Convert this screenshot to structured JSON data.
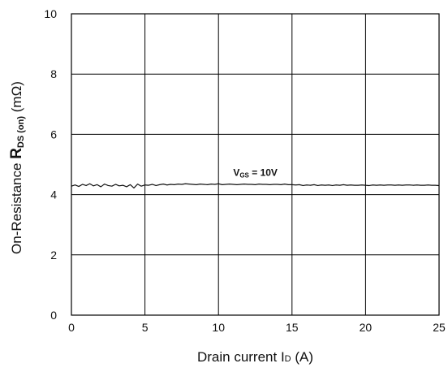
{
  "chart_data": {
    "type": "line",
    "xlabel": {
      "prefix": "Drain current I",
      "sub": "D",
      "suffix": " (A)"
    },
    "ylabel": {
      "prefix": "On-Resistance ",
      "bold": "R",
      "sub": "DS (on)",
      "suffix": " (mΩ)"
    },
    "xlim": [
      0,
      25
    ],
    "ylim": [
      0,
      10
    ],
    "x_ticks": [
      0,
      5,
      10,
      15,
      20,
      25
    ],
    "y_ticks": [
      0,
      2,
      4,
      6,
      8,
      10
    ],
    "grid": true,
    "series_label": {
      "main": "V",
      "sub": "GS",
      "rest": " = 10V"
    },
    "series_label_position": {
      "x": 11.0,
      "y": 4.62
    },
    "series": [
      {
        "x": [
          0,
          0.25,
          0.5,
          0.75,
          1,
          1.25,
          1.5,
          1.75,
          2,
          2.25,
          2.5,
          2.75,
          3,
          3.25,
          3.5,
          3.75,
          4,
          4.25,
          4.5,
          4.75,
          5,
          5.25,
          5.5,
          5.75,
          6,
          6.25,
          6.5,
          6.75,
          7,
          7.25,
          7.5,
          7.75,
          8,
          8.25,
          8.5,
          8.75,
          9,
          9.25,
          9.5,
          9.75,
          10,
          10.25,
          10.5,
          10.75,
          11,
          11.25,
          11.5,
          11.75,
          12,
          12.25,
          12.5,
          12.75,
          13,
          13.25,
          13.5,
          13.75,
          14,
          14.25,
          14.5,
          14.75,
          15,
          15.25,
          15.5,
          15.75,
          16,
          16.25,
          16.5,
          16.75,
          17,
          17.25,
          17.5,
          17.75,
          18,
          18.25,
          18.5,
          18.75,
          19,
          19.25,
          19.5,
          19.75,
          20,
          20.25,
          20.5,
          20.75,
          21,
          21.25,
          21.5,
          21.75,
          22,
          22.25,
          22.5,
          22.75,
          23,
          23.25,
          23.5,
          23.75,
          24,
          24.25,
          24.5,
          24.75,
          25
        ],
        "y": [
          4.28,
          4.32,
          4.27,
          4.34,
          4.3,
          4.36,
          4.29,
          4.33,
          4.26,
          4.35,
          4.3,
          4.28,
          4.34,
          4.29,
          4.31,
          4.26,
          4.33,
          4.22,
          4.35,
          4.28,
          4.32,
          4.31,
          4.34,
          4.3,
          4.33,
          4.35,
          4.32,
          4.34,
          4.33,
          4.35,
          4.34,
          4.36,
          4.35,
          4.34,
          4.33,
          4.35,
          4.34,
          4.33,
          4.35,
          4.34,
          4.36,
          4.33,
          4.34,
          4.35,
          4.34,
          4.33,
          4.34,
          4.35,
          4.34,
          4.34,
          4.33,
          4.35,
          4.34,
          4.34,
          4.33,
          4.34,
          4.34,
          4.33,
          4.35,
          4.33,
          4.33,
          4.32,
          4.33,
          4.3,
          4.32,
          4.31,
          4.33,
          4.3,
          4.32,
          4.31,
          4.32,
          4.3,
          4.32,
          4.31,
          4.33,
          4.31,
          4.32,
          4.31,
          4.31,
          4.32,
          4.31,
          4.3,
          4.32,
          4.31,
          4.32,
          4.31,
          4.32,
          4.32,
          4.31,
          4.32,
          4.31,
          4.32,
          4.32,
          4.31,
          4.32,
          4.31,
          4.31,
          4.32,
          4.31,
          4.31,
          4.3
        ]
      }
    ]
  }
}
